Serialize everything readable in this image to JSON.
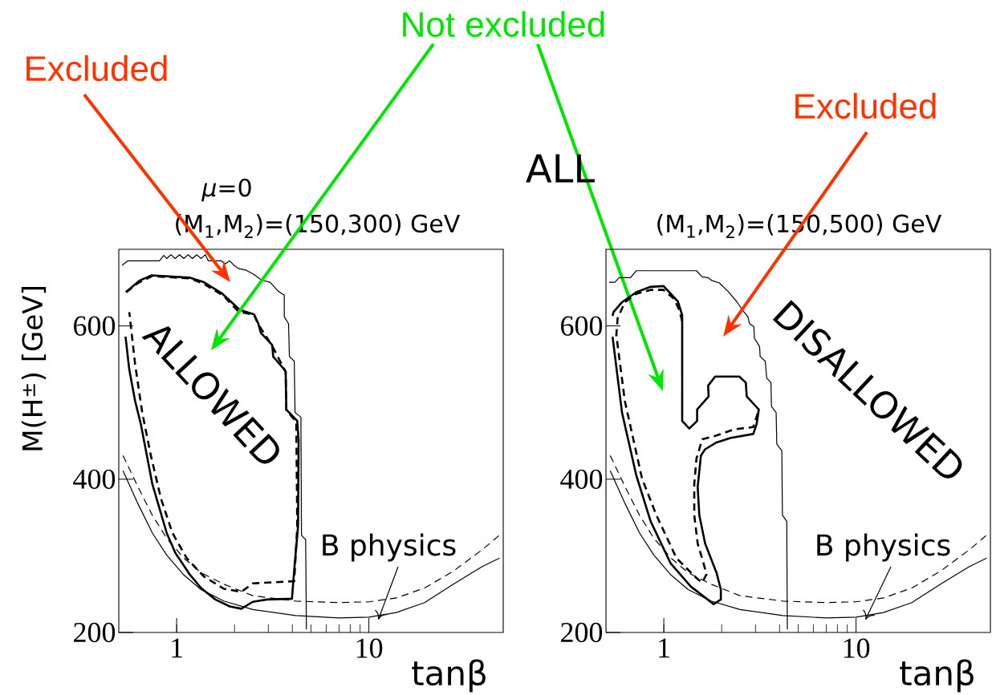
{
  "chart_data": [
    {
      "type": "line",
      "title": "*μ*=0",
      "subtitle": "(M$_{1}$,M$_{2}$)=(150,300) GeV",
      "xlabel": "tanβ",
      "ylabel": "M(H$^{±}$) [GeV]",
      "log": "x",
      "xlim": [
        0.5,
        50
      ],
      "ylim": [
        200,
        700
      ],
      "xticks": [
        1,
        10
      ],
      "yticks": [
        200,
        400,
        600
      ],
      "series": [
        {
          "color": "#000000",
          "line_style": "solid",
          "x": [
            0.52,
            0.557,
            0.814,
            0.857,
            0.887,
            0.934,
            0.983,
            1.035,
            1.09,
            1.147,
            1.208,
            1.272,
            1.339,
            1.41,
            1.46,
            1.7,
            1.79,
            1.89,
            1.99,
            2.09,
            2.28,
            2.49,
            2.76,
            3.06,
            3.39,
            3.63,
            3.63,
            3.82,
            3.86,
            4.09,
            4.13,
            4.43,
            4.46,
            4.69,
            4.73
          ],
          "values": [
            679,
            685,
            685,
            692,
            688,
            693,
            688,
            693,
            688,
            693,
            688,
            693,
            688,
            693,
            685,
            685,
            681,
            685,
            679,
            675,
            673,
            668,
            660,
            657,
            645,
            640,
            612,
            603,
            560,
            554,
            487,
            481,
            327,
            321,
            204
          ]
        },
        {
          "color": "#000000",
          "line_style": "solid",
          "x": [
            0.544,
            0.64,
            0.741,
            1.167,
            1.386,
            1.73,
            2.13,
            2.53,
            2.66,
            2.74,
            3.14,
            3.18,
            3.69,
            3.72,
            4.24,
            4.31,
            4.28,
            4.09,
            3.98,
            2.95,
            2.49,
            2.17,
            1.89,
            1.59,
            1.34,
            1.167,
            0.983,
            0.887,
            0.747,
            0.651,
            0.608,
            0.567,
            0.542
          ],
          "values": [
            644,
            659,
            666,
            663,
            657,
            642,
            621,
            615,
            603,
            591,
            575,
            560,
            541,
            491,
            476,
            450,
            338,
            282,
            244,
            243,
            240,
            231,
            234,
            243,
            258,
            276,
            304,
            330,
            394,
            472,
            502,
            543,
            586
          ]
        },
        {
          "color": "#000000",
          "line_style": "dashed",
          "x": [
            0.547,
            0.629,
            0.747,
            1.167,
            1.386,
            1.76,
            2.09,
            2.53,
            2.66,
            3.14,
            3.69,
            3.72,
            4.19,
            4.24,
            4.09,
            2.49,
            2.17,
            1.76,
            1.386,
            1.128,
            0.95,
            0.828,
            0.734,
            0.662,
            0.608,
            0.567
          ],
          "values": [
            644,
            656,
            665,
            662,
            655,
            639,
            619,
            614,
            602,
            574,
            540,
            490,
            475,
            338,
            267,
            264,
            253,
            257,
            273,
            297,
            330,
            375,
            431,
            487,
            550,
            618
          ]
        },
        {
          "color": "#000000",
          "line_style": "solid",
          "x": [
            0.526,
            0.629,
            0.747,
            0.887,
            1.09,
            1.339,
            1.76,
            2.49,
            4.16,
            6.97,
            10.0,
            13.9,
            19.5,
            27.5,
            38.9,
            47.8
          ],
          "values": [
            411,
            368,
            330,
            301,
            275,
            256,
            241,
            230,
            222,
            219,
            220,
            226,
            239,
            263,
            286,
            297
          ]
        },
        {
          "color": "#000000",
          "line_style": "dashed",
          "x": [
            0.526,
            0.629,
            0.747,
            0.887,
            1.09,
            1.339,
            1.76,
            2.49,
            4.16,
            6.97,
            10.0,
            13.9,
            19.5,
            27.5,
            38.9,
            47.8
          ],
          "values": [
            431,
            390,
            353,
            323,
            297,
            278,
            263,
            248,
            241,
            239,
            240,
            245,
            258,
            280,
            308,
            327
          ]
        }
      ],
      "annotations": [
        "Excluded",
        "Not excluded",
        "ALL",
        "ALLOWED",
        {
          "text": "B physics",
          "x": 11.2,
          "y": 221
        }
      ]
    },
    {
      "type": "line",
      "title": "(M$_{1}$,M$_{2}$)=(150,500) GeV",
      "xlabel": "tanβ",
      "log": "x",
      "xlim": [
        0.5,
        50
      ],
      "ylim": [
        200,
        700
      ],
      "xticks": [
        1,
        10
      ],
      "yticks": [
        200,
        400,
        600
      ],
      "series": [
        {
          "color": "#000000",
          "line_style": "solid",
          "x": [
            0.519,
            0.556,
            0.586,
            0.671,
            0.719,
            1.479,
            1.584,
            1.696,
            1.786,
            1.945,
            2.16,
            2.39,
            2.56,
            2.74,
            2.79,
            2.94,
            2.96,
            3.15,
            3.17,
            3.37,
            3.43,
            3.61,
            3.63,
            3.84,
            3.87,
            4.11,
            4.14,
            4.36,
            4.39
          ],
          "values": [
            657,
            657,
            663,
            663,
            672,
            672,
            664,
            663,
            659,
            656,
            645,
            632,
            621,
            612,
            603,
            599,
            584,
            573,
            560,
            554,
            532,
            526,
            495,
            487,
            446,
            437,
            353,
            345,
            204
          ]
        },
        {
          "color": "#000000",
          "line_style": "solid",
          "x": [
            0.541,
            0.606,
            0.719,
            0.854,
            1.086,
            1.381,
            1.816,
            1.98,
            1.98,
            1.88,
            1.64,
            1.53,
            1.5,
            1.56,
            1.64,
            1.88,
            2.23,
            2.92,
            3.04,
            3.12,
            2.7,
            2.67,
            2.47,
            1.85,
            1.7,
            1.71,
            1.49,
            1.49,
            1.357,
            1.246,
            1.246,
            1.183,
            0.997,
            0.854,
            0.719,
            0.606,
            0.547,
            0.541
          ],
          "values": [
            586,
            487,
            405,
            345,
            290,
            260,
            237,
            243,
            256,
            278,
            316,
            353,
            390,
            431,
            439,
            448,
            454,
            459,
            472,
            491,
            508,
            526,
            534,
            534,
            522,
            508,
            491,
            476,
            466,
            476,
            614,
            632,
            652,
            651,
            644,
            631,
            618,
            613
          ]
        },
        {
          "color": "#000000",
          "line_style": "dashed",
          "x": [
            1.246,
            1.204,
            1.124,
            0.997,
            0.854,
            0.719,
            0.627,
            0.575,
            0.566,
            0.627,
            0.77,
            0.915,
            1.163,
            1.479,
            1.584,
            1.667,
            1.61,
            1.5,
            1.44,
            1.44,
            1.479,
            1.584,
            1.88,
            2.31,
            2.92,
            3.09
          ],
          "values": [
            606,
            621,
            636,
            647,
            647,
            642,
            631,
            610,
            588,
            502,
            401,
            353,
            297,
            271,
            265,
            276,
            290,
            316,
            353,
            394,
            427,
            452,
            457,
            465,
            468,
            487
          ]
        },
        {
          "color": "#000000",
          "line_style": "solid",
          "x": [
            0.526,
            0.629,
            0.747,
            0.887,
            1.09,
            1.339,
            1.76,
            2.49,
            4.16,
            6.97,
            10.0,
            13.9,
            19.5,
            27.5,
            38.9,
            47.8
          ],
          "values": [
            411,
            368,
            330,
            301,
            275,
            256,
            241,
            230,
            222,
            219,
            220,
            226,
            239,
            263,
            286,
            297
          ]
        },
        {
          "color": "#000000",
          "line_style": "dashed",
          "x": [
            0.526,
            0.629,
            0.747,
            0.887,
            1.09,
            1.339,
            1.76,
            2.49,
            4.16,
            6.97,
            10.0,
            13.9,
            19.5,
            27.5,
            38.9,
            47.8
          ],
          "values": [
            431,
            390,
            353,
            323,
            297,
            278,
            263,
            248,
            241,
            239,
            240,
            245,
            258,
            280,
            308,
            327
          ]
        }
      ],
      "annotations": [
        "Excluded",
        "DISALLOWED",
        {
          "text": "B physics",
          "x": 11.2,
          "y": 221
        }
      ]
    }
  ]
}
